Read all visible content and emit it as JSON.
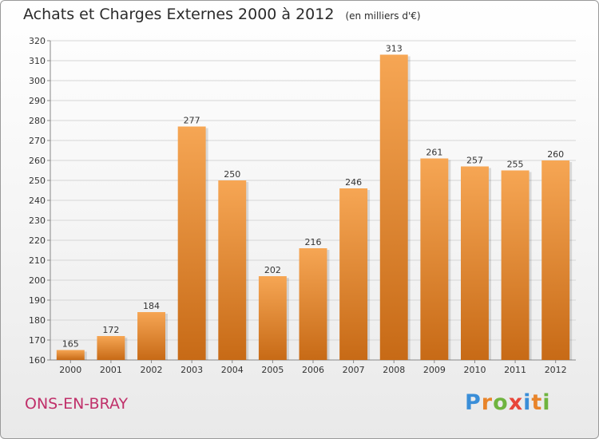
{
  "chart_data": {
    "type": "bar",
    "title": "Achats et Charges Externes 2000 à 2012",
    "subtitle": "(en milliers d'€)",
    "categories": [
      "2000",
      "2001",
      "2002",
      "2003",
      "2004",
      "2005",
      "2006",
      "2007",
      "2008",
      "2009",
      "2010",
      "2011",
      "2012"
    ],
    "values": [
      165,
      172,
      184,
      277,
      250,
      202,
      216,
      246,
      313,
      261,
      257,
      255,
      260
    ],
    "ylim": [
      160,
      320
    ],
    "yticks": [
      160,
      170,
      180,
      190,
      200,
      210,
      220,
      230,
      240,
      250,
      260,
      270,
      280,
      290,
      300,
      310,
      320
    ],
    "grid": true,
    "colors": {
      "bar_light": "#f6a654",
      "bar_dark": "#c76a16",
      "location": "#c0306a"
    }
  },
  "footer": {
    "location": "ONS-EN-BRAY",
    "brand_letters": [
      {
        "char": "P",
        "color": "#3a8ed8"
      },
      {
        "char": "r",
        "color": "#e8842a"
      },
      {
        "char": "o",
        "color": "#6fb43f"
      },
      {
        "char": "x",
        "color": "#e8463a"
      },
      {
        "char": "i",
        "color": "#3a8ed8"
      },
      {
        "char": "t",
        "color": "#e8842a"
      },
      {
        "char": "i",
        "color": "#6fb43f"
      }
    ]
  }
}
